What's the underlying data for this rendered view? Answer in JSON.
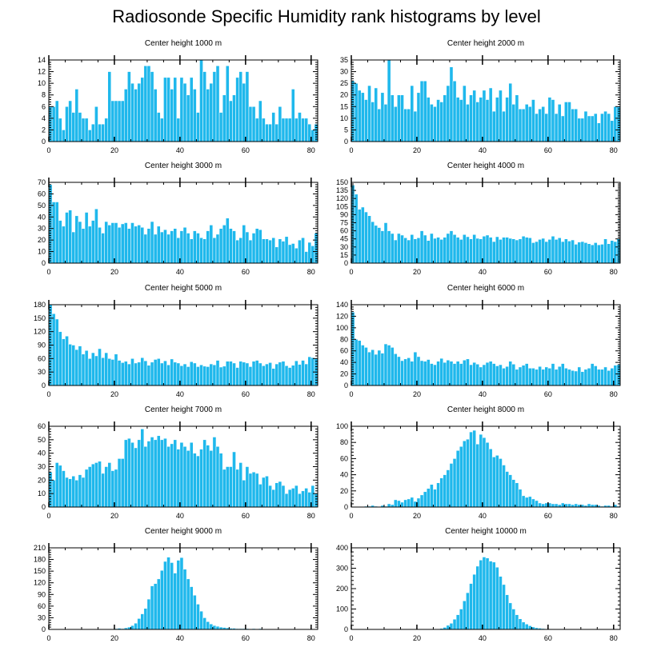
{
  "title": "Radiosonde Specific Humidity rank histograms by level",
  "colors": {
    "bar": "#1fb8ec",
    "bar_edge": "#ffffff",
    "axis": "#000000"
  },
  "chart_data": [
    {
      "type": "bar",
      "title": "Center height 1000 m",
      "xlim": [
        0,
        82
      ],
      "ylim": [
        0,
        14
      ],
      "xticks": [
        0,
        20,
        40,
        60,
        80
      ],
      "yticks": [
        0,
        2,
        4,
        6,
        8,
        10,
        12,
        14
      ],
      "x_start": 0,
      "values": [
        6,
        6,
        7,
        4,
        2,
        6,
        7,
        5,
        9,
        5,
        4,
        4,
        2,
        3,
        6,
        3,
        3,
        4,
        12,
        7,
        7,
        7,
        7,
        9,
        12,
        10,
        9,
        10,
        11,
        13,
        13,
        12,
        9,
        5,
        4,
        11,
        11,
        9,
        11,
        4,
        11,
        10,
        8,
        11,
        9,
        5,
        14,
        12,
        9,
        10,
        12,
        13,
        5,
        8,
        13,
        7,
        8,
        11,
        12,
        10,
        12,
        6,
        6,
        4,
        7,
        4,
        3,
        3,
        5,
        3,
        6,
        4,
        4,
        4,
        9,
        4,
        5,
        4,
        4,
        3,
        2,
        3
      ]
    },
    {
      "type": "bar",
      "title": "Center height 2000 m",
      "xlim": [
        0,
        82
      ],
      "ylim": [
        0,
        35
      ],
      "xticks": [
        0,
        20,
        40,
        60,
        80
      ],
      "yticks": [
        0,
        5,
        10,
        15,
        20,
        25,
        30,
        35
      ],
      "x_start": 0,
      "values": [
        26,
        25,
        22,
        21,
        18,
        24,
        17,
        23,
        14,
        21,
        16,
        35,
        20,
        15,
        20,
        20,
        14,
        14,
        24,
        13,
        21,
        26,
        26,
        19,
        16,
        15,
        18,
        17,
        20,
        24,
        32,
        26,
        19,
        18,
        24,
        16,
        20,
        22,
        17,
        19,
        22,
        18,
        23,
        13,
        19,
        22,
        13,
        19,
        25,
        16,
        20,
        14,
        14,
        16,
        15,
        18,
        12,
        14,
        15,
        12,
        19,
        18,
        12,
        16,
        11,
        17,
        17,
        14,
        14,
        10,
        10,
        13,
        11,
        11,
        12,
        8,
        12,
        13,
        12,
        9,
        15,
        15
      ]
    },
    {
      "type": "bar",
      "title": "Center height 3000 m",
      "xlim": [
        0,
        82
      ],
      "ylim": [
        0,
        70
      ],
      "xticks": [
        0,
        20,
        40,
        60,
        80
      ],
      "yticks": [
        0,
        10,
        20,
        30,
        40,
        50,
        60,
        70
      ],
      "x_start": 0,
      "values": [
        68,
        53,
        53,
        37,
        32,
        44,
        46,
        27,
        41,
        36,
        30,
        44,
        32,
        37,
        47,
        31,
        26,
        36,
        33,
        35,
        35,
        31,
        34,
        35,
        30,
        35,
        32,
        33,
        31,
        25,
        30,
        36,
        25,
        32,
        27,
        29,
        25,
        28,
        30,
        22,
        28,
        31,
        26,
        21,
        28,
        26,
        22,
        21,
        28,
        33,
        22,
        25,
        30,
        33,
        39,
        30,
        28,
        20,
        22,
        33,
        27,
        20,
        26,
        30,
        29,
        21,
        21,
        20,
        22,
        14,
        21,
        19,
        23,
        16,
        17,
        13,
        20,
        22,
        10,
        18,
        15,
        26
      ]
    },
    {
      "type": "bar",
      "title": "Center height 4000 m",
      "xlim": [
        0,
        82
      ],
      "ylim": [
        0,
        150
      ],
      "xticks": [
        0,
        20,
        40,
        60,
        80
      ],
      "yticks": [
        0,
        15,
        30,
        45,
        60,
        75,
        90,
        105,
        120,
        135,
        150
      ],
      "x_start": 0,
      "values": [
        145,
        128,
        100,
        104,
        95,
        88,
        77,
        70,
        66,
        60,
        75,
        60,
        55,
        43,
        55,
        52,
        47,
        43,
        53,
        45,
        47,
        60,
        52,
        42,
        55,
        46,
        48,
        44,
        48,
        55,
        60,
        53,
        48,
        44,
        53,
        49,
        45,
        53,
        46,
        45,
        50,
        52,
        48,
        40,
        49,
        44,
        48,
        48,
        46,
        45,
        43,
        45,
        50,
        48,
        47,
        38,
        40,
        44,
        46,
        40,
        44,
        50,
        44,
        47,
        40,
        45,
        41,
        43,
        35,
        39,
        40,
        38,
        36,
        34,
        38,
        34,
        35,
        45,
        36,
        42,
        40,
        45
      ]
    },
    {
      "type": "bar",
      "title": "Center height 5000 m",
      "xlim": [
        0,
        82
      ],
      "ylim": [
        0,
        180
      ],
      "xticks": [
        0,
        20,
        40,
        60,
        80
      ],
      "yticks": [
        0,
        30,
        60,
        90,
        120,
        150,
        180
      ],
      "x_start": 0,
      "values": [
        180,
        160,
        148,
        120,
        104,
        110,
        92,
        90,
        80,
        88,
        70,
        78,
        60,
        73,
        66,
        82,
        62,
        73,
        60,
        58,
        70,
        56,
        51,
        54,
        48,
        60,
        50,
        52,
        62,
        55,
        45,
        52,
        58,
        60,
        50,
        55,
        46,
        59,
        52,
        50,
        44,
        48,
        42,
        53,
        50,
        42,
        46,
        43,
        42,
        48,
        46,
        56,
        41,
        43,
        54,
        54,
        50,
        40,
        54,
        52,
        50,
        42,
        54,
        56,
        50,
        44,
        48,
        51,
        38,
        48,
        52,
        54,
        44,
        40,
        45,
        55,
        47,
        56,
        48,
        64,
        62,
        60
      ]
    },
    {
      "type": "bar",
      "title": "Center height 6000 m",
      "xlim": [
        0,
        82
      ],
      "ylim": [
        0,
        140
      ],
      "xticks": [
        0,
        20,
        40,
        60,
        80
      ],
      "yticks": [
        0,
        20,
        40,
        60,
        80,
        100,
        120,
        140
      ],
      "x_start": 0,
      "values": [
        127,
        80,
        78,
        70,
        66,
        58,
        62,
        54,
        61,
        56,
        72,
        70,
        66,
        55,
        50,
        43,
        46,
        48,
        42,
        58,
        50,
        43,
        42,
        45,
        38,
        36,
        42,
        47,
        40,
        44,
        42,
        38,
        42,
        38,
        44,
        46,
        36,
        40,
        37,
        32,
        36,
        40,
        42,
        38,
        34,
        36,
        30,
        33,
        42,
        37,
        28,
        32,
        35,
        38,
        30,
        30,
        28,
        33,
        28,
        32,
        30,
        38,
        28,
        33,
        38,
        30,
        28,
        26,
        25,
        32,
        24,
        28,
        30,
        38,
        34,
        28,
        28,
        32,
        26,
        30,
        35,
        36
      ]
    },
    {
      "type": "bar",
      "title": "Center height 7000 m",
      "xlim": [
        0,
        82
      ],
      "ylim": [
        0,
        60
      ],
      "xticks": [
        0,
        20,
        40,
        60,
        80
      ],
      "yticks": [
        0,
        10,
        20,
        30,
        40,
        50,
        60
      ],
      "x_start": 0,
      "values": [
        26,
        20,
        33,
        31,
        27,
        22,
        21,
        23,
        20,
        24,
        22,
        28,
        30,
        32,
        33,
        34,
        25,
        30,
        33,
        27,
        28,
        36,
        36,
        50,
        51,
        48,
        44,
        50,
        58,
        45,
        49,
        52,
        50,
        53,
        50,
        51,
        45,
        47,
        50,
        43,
        48,
        45,
        42,
        48,
        40,
        38,
        43,
        50,
        46,
        42,
        52,
        45,
        40,
        28,
        30,
        30,
        41,
        28,
        33,
        20,
        30,
        25,
        26,
        25,
        17,
        22,
        23,
        16,
        13,
        18,
        19,
        16,
        10,
        13,
        14,
        16,
        10,
        12,
        14,
        11,
        16,
        10
      ]
    },
    {
      "type": "bar",
      "title": "Center height 8000 m",
      "xlim": [
        0,
        82
      ],
      "ylim": [
        0,
        100
      ],
      "xticks": [
        0,
        20,
        40,
        60,
        80
      ],
      "yticks": [
        0,
        20,
        40,
        60,
        80,
        100
      ],
      "x_start": 0,
      "values": [
        0,
        0,
        0,
        0,
        1,
        1,
        2,
        1,
        0,
        2,
        1,
        4,
        3,
        9,
        8,
        6,
        9,
        10,
        12,
        7,
        11,
        15,
        19,
        23,
        28,
        22,
        30,
        36,
        40,
        46,
        54,
        60,
        70,
        75,
        82,
        84,
        93,
        95,
        78,
        90,
        86,
        80,
        72,
        62,
        64,
        60,
        52,
        44,
        40,
        34,
        30,
        22,
        14,
        12,
        13,
        10,
        8,
        5,
        4,
        5,
        5,
        4,
        4,
        3,
        5,
        4,
        4,
        3,
        4,
        3,
        3,
        2,
        4,
        3,
        3,
        2,
        1,
        2,
        2,
        1,
        3,
        1
      ]
    },
    {
      "type": "bar",
      "title": "Center height 9000 m",
      "xlim": [
        0,
        82
      ],
      "ylim": [
        0,
        210
      ],
      "xticks": [
        0,
        20,
        40,
        60,
        80
      ],
      "yticks": [
        0,
        30,
        60,
        90,
        120,
        150,
        180,
        210
      ],
      "x_start": 0,
      "values": [
        0,
        0,
        0,
        0,
        0,
        0,
        0,
        0,
        0,
        0,
        0,
        0,
        0,
        0,
        0,
        0,
        0,
        0,
        0,
        0,
        2,
        3,
        2,
        4,
        6,
        10,
        16,
        28,
        40,
        54,
        78,
        112,
        118,
        130,
        152,
        175,
        186,
        172,
        145,
        178,
        185,
        155,
        130,
        110,
        88,
        65,
        47,
        30,
        20,
        14,
        10,
        8,
        6,
        5,
        4,
        3,
        3,
        2,
        2,
        2,
        2,
        1,
        2,
        1,
        2,
        1,
        1,
        1,
        1,
        0,
        1,
        0,
        1,
        0,
        0,
        0,
        0,
        0,
        0,
        0,
        0,
        0
      ]
    },
    {
      "type": "bar",
      "title": "Center height 10000 m",
      "xlim": [
        0,
        82
      ],
      "ylim": [
        0,
        400
      ],
      "xticks": [
        0,
        20,
        40,
        60,
        80
      ],
      "yticks": [
        0,
        100,
        200,
        300,
        400
      ],
      "x_start": 0,
      "values": [
        0,
        0,
        0,
        0,
        0,
        0,
        0,
        0,
        0,
        0,
        0,
        0,
        0,
        0,
        0,
        0,
        0,
        0,
        0,
        0,
        0,
        0,
        0,
        0,
        1,
        2,
        3,
        5,
        10,
        20,
        30,
        50,
        72,
        100,
        140,
        180,
        225,
        270,
        310,
        340,
        355,
        350,
        335,
        330,
        305,
        260,
        220,
        170,
        130,
        100,
        72,
        52,
        36,
        26,
        18,
        12,
        8,
        6,
        4,
        3,
        2,
        2,
        1,
        1,
        1,
        1,
        0,
        1,
        0,
        0,
        0,
        0,
        0,
        0,
        0,
        0,
        0,
        0,
        0,
        0,
        0,
        0
      ]
    }
  ]
}
